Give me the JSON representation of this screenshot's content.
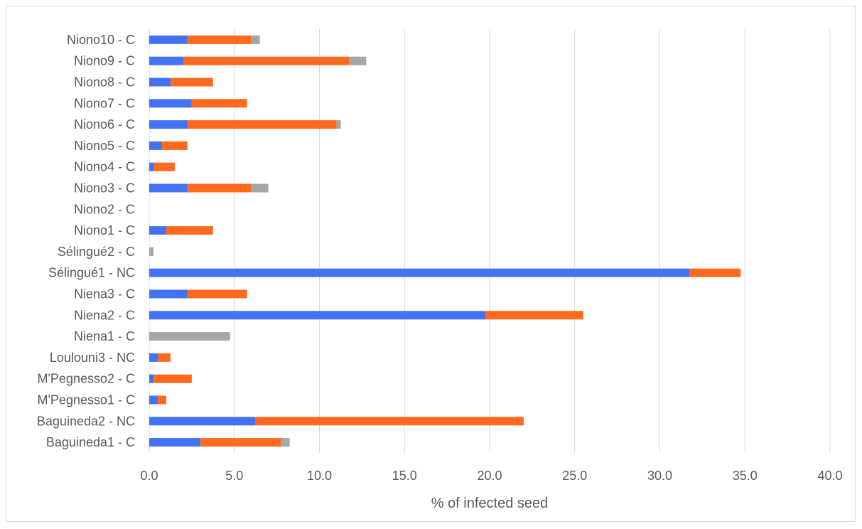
{
  "chart_data": {
    "type": "bar",
    "orientation": "horizontal",
    "stacked": true,
    "title": "",
    "xlabel": "% of infected seed",
    "ylabel": "",
    "xlim": [
      0,
      40
    ],
    "x_ticks": [
      "0.0",
      "5.0",
      "10.0",
      "15.0",
      "20.0",
      "25.0",
      "30.0",
      "35.0",
      "40.0"
    ],
    "grid": true,
    "legend": "none",
    "categories": [
      "Baguineda1 - C",
      "Baguineda2 - NC",
      "M'Pegnesso1 - C",
      "M'Pegnesso2 - C",
      "Loulouni3 - NC",
      "Niena1 - C",
      "Niena2 - C",
      "Niena3 - C",
      "Sélingué1 - NC",
      "Sélingué2 - C",
      "Niono1 - C",
      "Niono2 - C",
      "Niono3 - C",
      "Niono4 - C",
      "Niono5 - C",
      "Niono6 - C",
      "Niono7 - C",
      "Niono8 - C",
      "Niono9 - C",
      "Niono10 - C"
    ],
    "series": [
      {
        "color": "#4472f5",
        "values": [
          3.0,
          6.25,
          0.5,
          0.25,
          0.5,
          0,
          19.75,
          2.25,
          31.75,
          0,
          1.0,
          0,
          2.25,
          0.25,
          0.75,
          2.25,
          2.5,
          1.25,
          2.0,
          2.25
        ]
      },
      {
        "color": "#ff6a1f",
        "values": [
          4.75,
          15.75,
          0.5,
          2.25,
          0.75,
          0,
          5.75,
          3.5,
          3.0,
          0,
          2.75,
          0,
          3.75,
          1.25,
          1.5,
          8.75,
          3.25,
          2.5,
          9.75,
          3.75
        ]
      },
      {
        "color": "#a6a6a6",
        "values": [
          0.5,
          0,
          0,
          0,
          0,
          4.75,
          0,
          0,
          0,
          0.25,
          0,
          0,
          1.0,
          0,
          0,
          0.25,
          0,
          0,
          1.0,
          0.5
        ]
      }
    ]
  }
}
